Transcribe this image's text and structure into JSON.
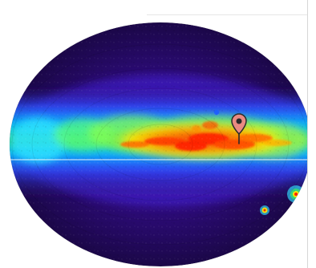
{
  "map": {
    "projection": "mollweide",
    "colormap": [
      "#2b0a5a",
      "#4b1aa8",
      "#1f4dff",
      "#00c8ff",
      "#36e36a",
      "#ffe600",
      "#ff7a00",
      "#ff2500"
    ],
    "marker": {
      "icon": "map-pin-icon",
      "color": "#e98a82",
      "outline": "#2a2a2a"
    }
  }
}
